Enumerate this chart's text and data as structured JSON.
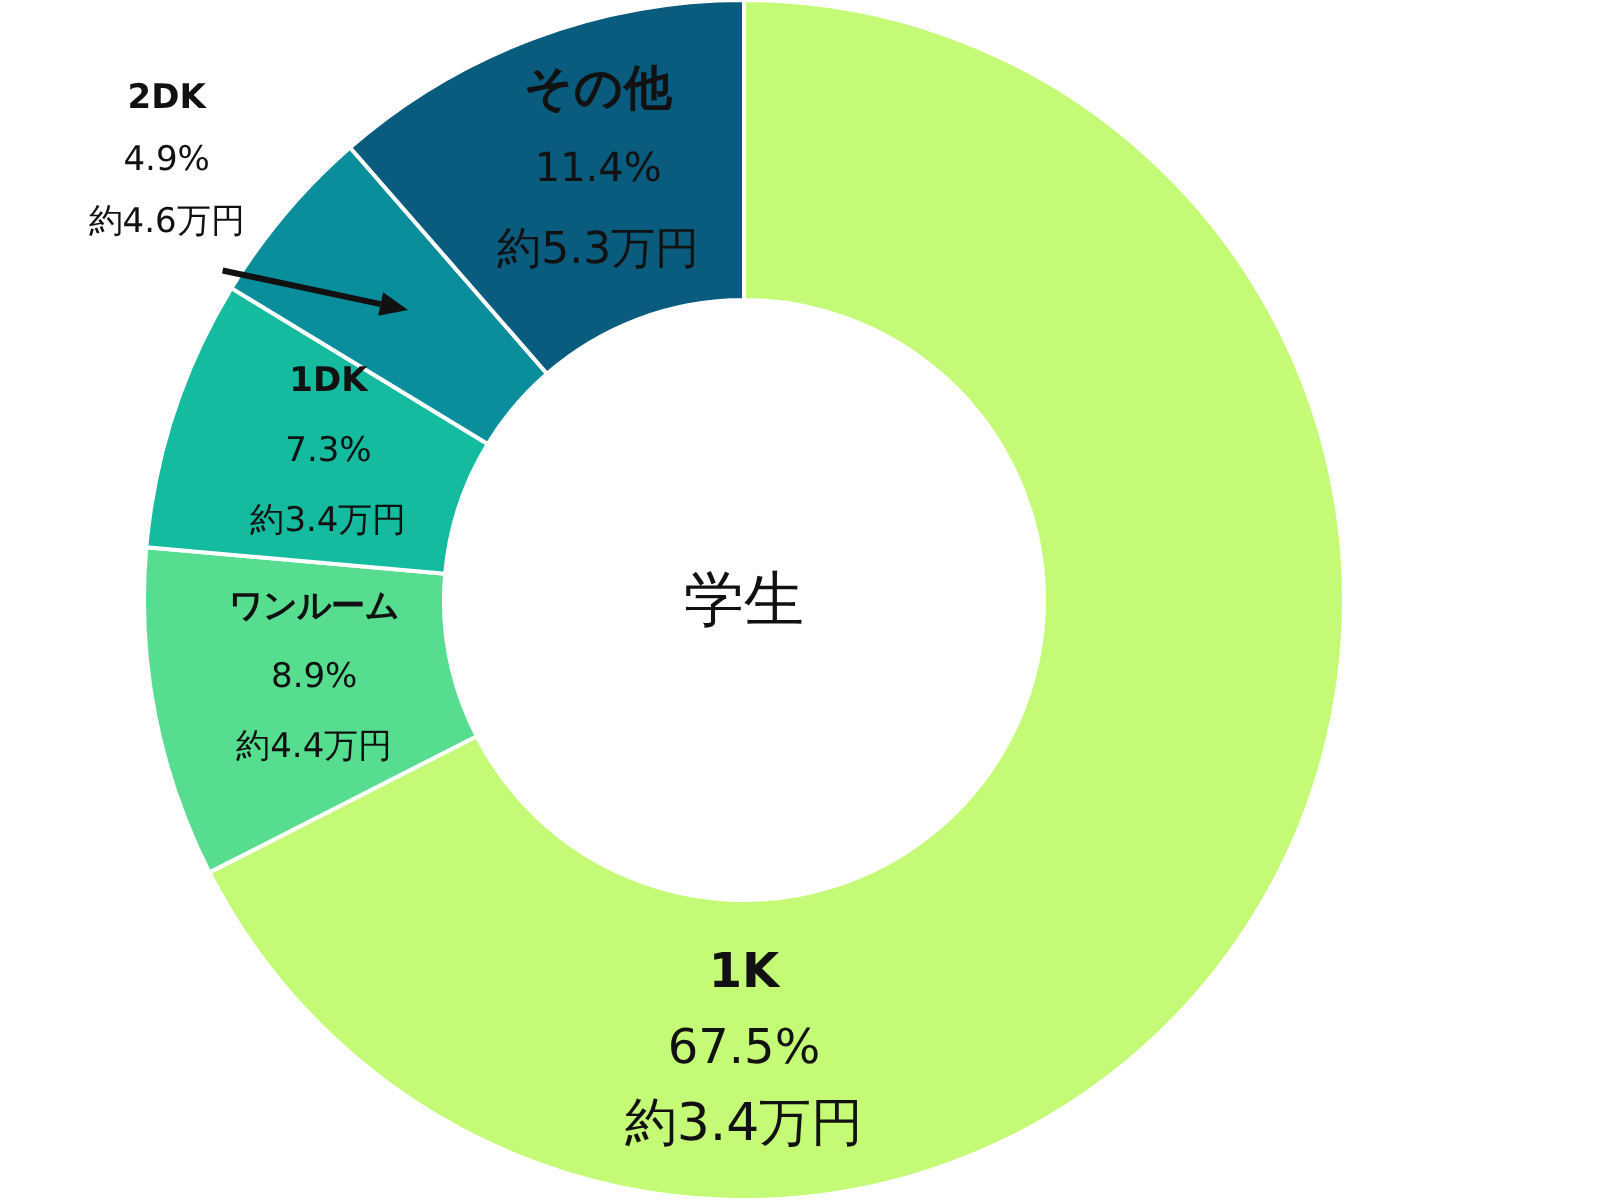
{
  "chart_data": {
    "type": "donut",
    "title": "学生",
    "categories": [
      "1K",
      "ワンルーム",
      "1DK",
      "2DK",
      "その他"
    ],
    "values": [
      67.5,
      8.9,
      7.3,
      4.9,
      11.4
    ],
    "colors": [
      "#c4fa76",
      "#57dd90",
      "#14bb9f",
      "#0b8e9c",
      "#0a5c7e"
    ],
    "value_labels": [
      "67.5%",
      "8.9%",
      "7.3%",
      "4.9%",
      "11.4%"
    ],
    "annotations": [
      {
        "text": "約3.4万円",
        "x": "1K"
      },
      {
        "text": "約4.4万円",
        "x": "ワンルーム"
      },
      {
        "text": "約3.4万円",
        "x": "1DK"
      },
      {
        "text": "約4.6万円",
        "x": "2DK"
      },
      {
        "text": "約5.3万円",
        "x": "その他"
      }
    ]
  }
}
